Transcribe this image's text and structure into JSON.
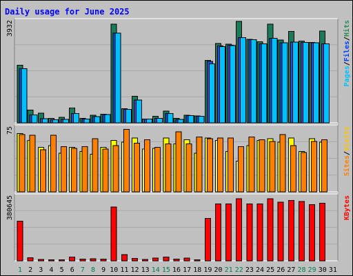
{
  "chart_data": {
    "type": "bar",
    "title": "Daily usage for June 2025",
    "categories": [
      "1",
      "2",
      "3",
      "4",
      "5",
      "6",
      "7",
      "8",
      "9",
      "10",
      "11",
      "12",
      "13",
      "14",
      "15",
      "16",
      "17",
      "18",
      "19",
      "20",
      "21",
      "22",
      "23",
      "24",
      "25",
      "26",
      "27",
      "28",
      "29",
      "30",
      "31"
    ],
    "weekend_days": [
      "1",
      "7",
      "8",
      "14",
      "15",
      "21",
      "22",
      "28",
      "29"
    ],
    "panels": [
      {
        "id": "hits-pages-files",
        "max_label": "3932",
        "ymax": 3932,
        "legend": [
          {
            "name": "Pages",
            "color": "#00c0ff"
          },
          {
            "name": "Files",
            "color": "#0040ff"
          },
          {
            "name": "Hits",
            "color": "#2e8b57"
          }
        ],
        "series": [
          {
            "name": "Hits",
            "color": "#1a7a5a",
            "values": [
              2240,
              500,
              380,
              170,
              210,
              580,
              180,
              300,
              330,
              3830,
              550,
              1030,
              150,
              260,
              450,
              180,
              300,
              270,
              2420,
              3080,
              3050,
              3932,
              3240,
              3140,
              3820,
              3210,
              3550,
              3170,
              3120,
              3560,
              0
            ]
          },
          {
            "name": "Files",
            "color": "#2050e0",
            "values": [
              2100,
              310,
              160,
              120,
              130,
              360,
              150,
              240,
              320,
              3480,
              520,
              880,
              150,
              180,
              360,
              140,
              280,
              250,
              2380,
              2980,
              3010,
              3300,
              3220,
              3060,
              3280,
              3100,
              3130,
              3120,
              3100,
              3060,
              0
            ]
          },
          {
            "name": "Pages",
            "color": "#00c0ff",
            "values": [
              2100,
              310,
              160,
              120,
              130,
              360,
              150,
              240,
              320,
              3480,
              520,
              880,
              150,
              180,
              360,
              140,
              280,
              250,
              2290,
              2960,
              2990,
              3300,
              3220,
              3060,
              3280,
              3100,
              3130,
              3120,
              3100,
              3060,
              0
            ]
          }
        ]
      },
      {
        "id": "visits-sites",
        "max_label": "75",
        "ymax": 75,
        "legend": [
          {
            "name": "Sites",
            "color": "#ff8000"
          },
          {
            "name": "Visits",
            "color": "#ffc000"
          }
        ],
        "series": [
          {
            "name": "Visits",
            "color": "#ffff00",
            "values": [
              68,
              60,
              52,
              54,
              45,
              52,
              47,
              44,
              52,
              60,
              58,
              63,
              50,
              51,
              63,
              56,
              61,
              45,
              63,
              60,
              47,
              36,
              54,
              60,
              62,
              58,
              63,
              47,
              62,
              58,
              0
            ]
          },
          {
            "name": "Sites",
            "color": "#ff8000",
            "values": [
              67,
              66,
              49,
              66,
              53,
              51,
              53,
              62,
              50,
              54,
              73,
              57,
              61,
              52,
              56,
              70,
              56,
              64,
              62,
              63,
              63,
              53,
              64,
              61,
              59,
              67,
              54,
              46,
              59,
              61,
              0
            ]
          }
        ]
      },
      {
        "id": "kbytes",
        "max_label": "380645",
        "ymax": 380645,
        "legend": [
          {
            "name": "KBytes",
            "color": "#ff0000"
          }
        ],
        "series": [
          {
            "name": "KBytes",
            "color": "#ff0000",
            "values": [
              236000,
              18000,
              8000,
              6000,
              6000,
              22000,
              10000,
              12000,
              10000,
              320000,
              36000,
              14000,
              8000,
              16000,
              22000,
              10000,
              16000,
              6000,
              252000,
              338000,
              338000,
              368000,
              338000,
              338000,
              368000,
              348000,
              358000,
              352000,
              334000,
              342000,
              0
            ]
          }
        ]
      }
    ]
  }
}
